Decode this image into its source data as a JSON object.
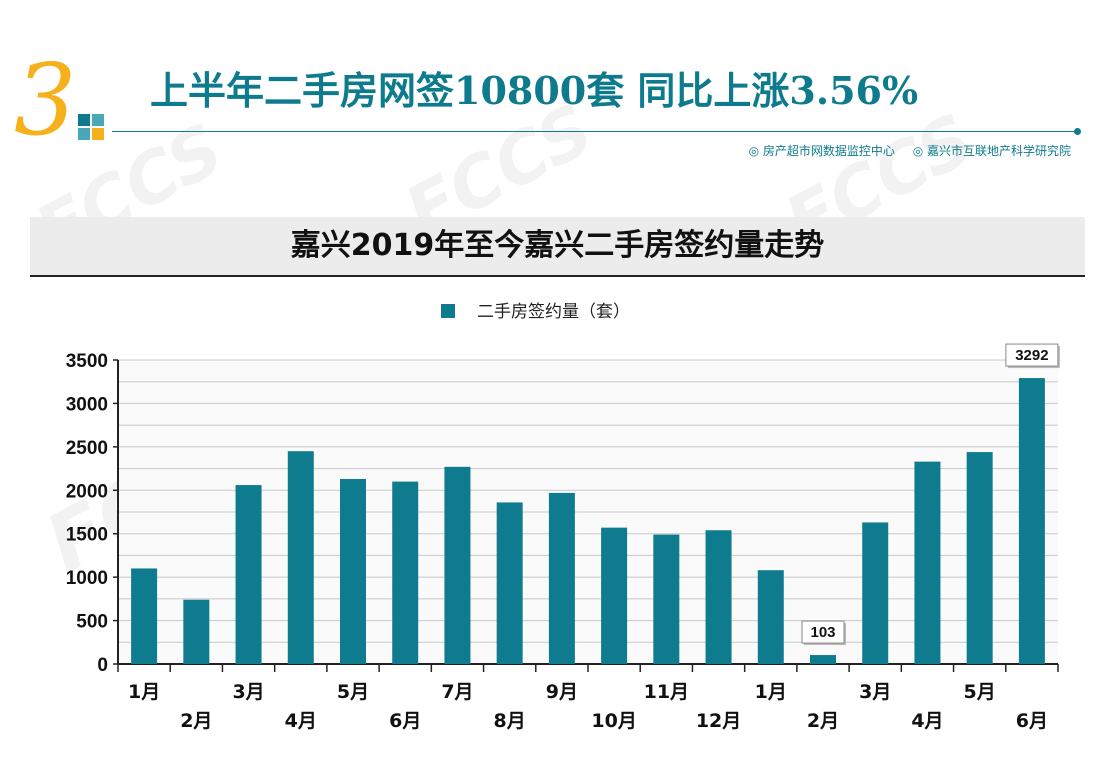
{
  "header": {
    "section_number": "3",
    "title": "上半年二手房网签10800套 同比上涨3.56%",
    "source_1": "◎ 房产超市网数据监控中心",
    "source_2": "◎ 嘉兴市互联地产科学研究院"
  },
  "watermark": "FCCS",
  "colors": {
    "accent": "#0d7b8d",
    "bar": "#0f7b8e",
    "number": "#f4b11c"
  },
  "chart_data": {
    "type": "bar",
    "title": "嘉兴2019年至今嘉兴二手房签约量走势",
    "legend_position": "top",
    "categories": [
      "1月",
      "2月",
      "3月",
      "4月",
      "5月",
      "6月",
      "7月",
      "8月",
      "9月",
      "10月",
      "11月",
      "12月",
      "1月",
      "2月",
      "3月",
      "4月",
      "5月",
      "6月"
    ],
    "series": [
      {
        "name": "二手房签约量（套）",
        "values": [
          1100,
          740,
          2060,
          2450,
          2130,
          2100,
          2270,
          1860,
          1970,
          1570,
          1490,
          1540,
          1080,
          103,
          1630,
          2330,
          2440,
          3292
        ]
      }
    ],
    "data_labels": [
      {
        "index": 13,
        "text": "103"
      },
      {
        "index": 17,
        "text": "3292"
      }
    ],
    "ylim": [
      0,
      3500
    ],
    "yticks": [
      "0",
      "500",
      "1000",
      "1500",
      "2000",
      "2500",
      "3000",
      "3500"
    ],
    "grid": true
  }
}
